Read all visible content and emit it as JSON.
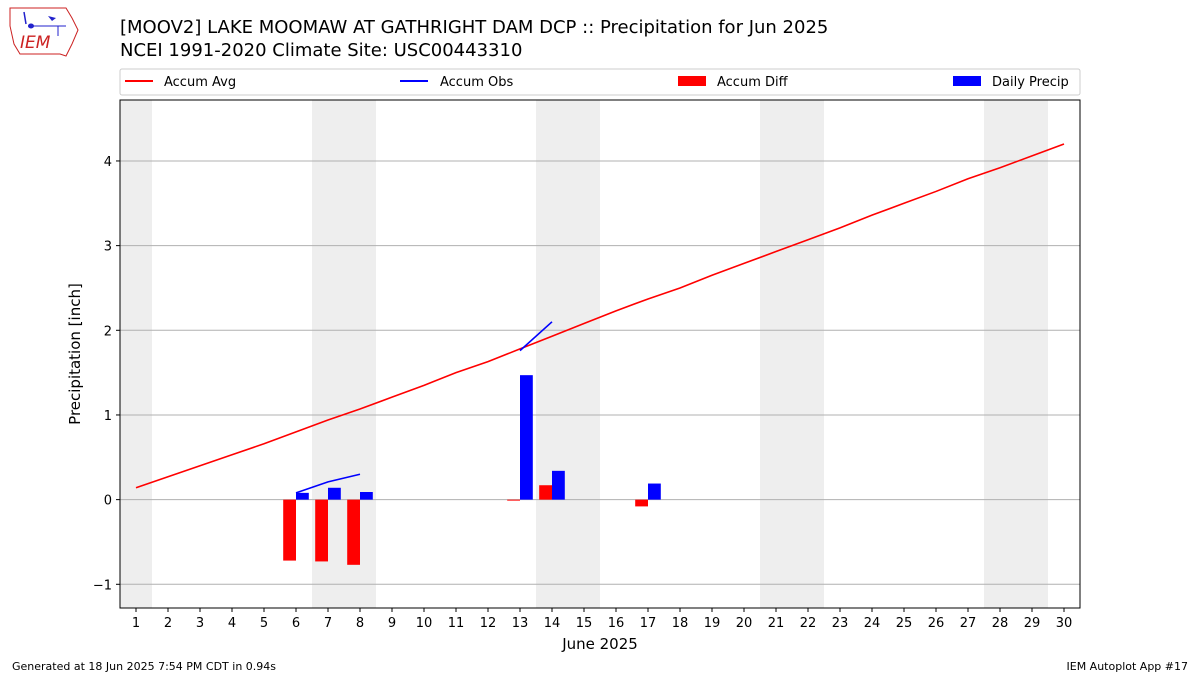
{
  "header": {
    "title_line1": "[MOOV2] LAKE MOOMAW  AT GATHRIGHT DAM DCP :: Precipitation for Jun 2025",
    "title_line2": "NCEI 1991-2020 Climate Site: USC00443310",
    "logo_text": "IEM"
  },
  "footer": {
    "left": "Generated at 18 Jun 2025 7:54 PM CDT in 0.94s",
    "right": "IEM Autoplot App #17"
  },
  "colors": {
    "avg": "#ff0000",
    "obs": "#0000ff",
    "diff": "#ff0000",
    "precip": "#0000ff",
    "weekend": "#eeeeee",
    "grid": "#b0b0b0"
  },
  "chart_data": {
    "type": "bar",
    "xlabel": "June 2025",
    "ylabel": "Precipitation [inch]",
    "xlim": [
      0.5,
      30.5
    ],
    "ylim": [
      -1.28,
      4.72
    ],
    "yticks": [
      -1,
      0,
      1,
      2,
      3,
      4
    ],
    "ytick_labels": [
      "−1",
      "0",
      "1",
      "2",
      "3",
      "4"
    ],
    "x_ticks": [
      1,
      2,
      3,
      4,
      5,
      6,
      7,
      8,
      9,
      10,
      11,
      12,
      13,
      14,
      15,
      16,
      17,
      18,
      19,
      20,
      21,
      22,
      23,
      24,
      25,
      26,
      27,
      28,
      29,
      30
    ],
    "grid": "horizontal",
    "weekend_shading": [
      [
        0.5,
        1.5
      ],
      [
        6.5,
        8.5
      ],
      [
        13.5,
        15.5
      ],
      [
        20.5,
        22.5
      ],
      [
        27.5,
        29.5
      ]
    ],
    "legend": {
      "placement": "top",
      "entries": [
        {
          "label": "Accum Avg",
          "kind": "line",
          "color": "#ff0000"
        },
        {
          "label": "Accum Obs",
          "kind": "line",
          "color": "#0000ff"
        },
        {
          "label": "Accum Diff",
          "kind": "bar",
          "color": "#ff0000"
        },
        {
          "label": "Daily Precip",
          "kind": "bar",
          "color": "#0000ff"
        }
      ]
    },
    "series": [
      {
        "name": "Accum Avg",
        "type": "line",
        "x": [
          1,
          2,
          3,
          4,
          5,
          6,
          7,
          8,
          9,
          10,
          11,
          12,
          13,
          14,
          15,
          16,
          17,
          18,
          19,
          20,
          21,
          22,
          23,
          24,
          25,
          26,
          27,
          28,
          29,
          30
        ],
        "values": [
          0.14,
          0.27,
          0.4,
          0.53,
          0.66,
          0.8,
          0.94,
          1.07,
          1.21,
          1.35,
          1.5,
          1.63,
          1.78,
          1.93,
          2.08,
          2.23,
          2.37,
          2.5,
          2.65,
          2.79,
          2.93,
          3.07,
          3.21,
          3.36,
          3.5,
          3.64,
          3.79,
          3.92,
          4.06,
          4.2
        ]
      },
      {
        "name": "Accum Obs",
        "type": "line",
        "segments": [
          {
            "x": [
              6,
              7,
              8
            ],
            "values": [
              0.08,
              0.21,
              0.3
            ]
          },
          {
            "x": [
              13,
              14
            ],
            "values": [
              1.76,
              2.1
            ]
          }
        ]
      },
      {
        "name": "Accum Diff",
        "type": "bar",
        "x": [
          6,
          7,
          8,
          13,
          14,
          17
        ],
        "values": [
          -0.72,
          -0.73,
          -0.77,
          -0.01,
          0.17,
          -0.08
        ]
      },
      {
        "name": "Daily Precip",
        "type": "bar",
        "x": [
          6,
          7,
          8,
          13,
          14,
          17
        ],
        "values": [
          0.08,
          0.14,
          0.09,
          1.47,
          0.34,
          0.19
        ]
      }
    ]
  }
}
